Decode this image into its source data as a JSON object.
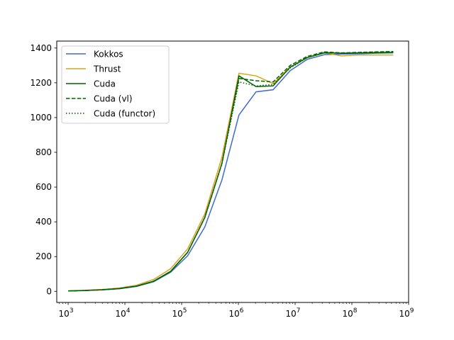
{
  "chart_data": {
    "type": "line",
    "xscale": "log",
    "xlim": [
      630,
      1000000000
    ],
    "ylim": [
      -64,
      1440
    ],
    "grid": false,
    "legend_position": "top-left",
    "x_ticks": [
      {
        "value": 1000,
        "base": "10",
        "exp": "3"
      },
      {
        "value": 10000,
        "base": "10",
        "exp": "4"
      },
      {
        "value": 100000,
        "base": "10",
        "exp": "5"
      },
      {
        "value": 1000000,
        "base": "10",
        "exp": "6"
      },
      {
        "value": 10000000,
        "base": "10",
        "exp": "7"
      },
      {
        "value": 100000000,
        "base": "10",
        "exp": "8"
      },
      {
        "value": 1000000000,
        "base": "10",
        "exp": "9"
      }
    ],
    "y_ticks": [
      0,
      200,
      400,
      600,
      800,
      1000,
      1200,
      1400
    ],
    "series": [
      {
        "name": "Kokkos",
        "color": "#4169cf",
        "dash": "solid",
        "x": [
          1000,
          2000,
          4000,
          8000,
          16000,
          32000,
          64000,
          128000,
          256000,
          512000,
          1024000,
          2048000,
          4096000,
          8192000,
          16384000,
          32768000,
          65536000,
          131072000,
          262144000,
          536870912
        ],
        "y": [
          2,
          5,
          9,
          15,
          28,
          55,
          110,
          205,
          370,
          640,
          1015,
          1148,
          1160,
          1270,
          1335,
          1362,
          1365,
          1367,
          1370,
          1372
        ]
      },
      {
        "name": "Thrust",
        "color": "#d9a41e",
        "dash": "solid",
        "x": [
          1000,
          2000,
          4000,
          8000,
          16000,
          32000,
          64000,
          128000,
          256000,
          512000,
          1024000,
          2048000,
          4096000,
          8192000,
          16384000,
          32768000,
          65536000,
          131072000,
          262144000,
          536870912
        ],
        "y": [
          3,
          6,
          11,
          19,
          35,
          68,
          130,
          245,
          445,
          770,
          1255,
          1240,
          1195,
          1290,
          1345,
          1372,
          1355,
          1360,
          1360,
          1360
        ]
      },
      {
        "name": "Cuda",
        "color": "#006400",
        "dash": "solid",
        "x": [
          1000,
          2000,
          4000,
          8000,
          16000,
          32000,
          64000,
          128000,
          256000,
          512000,
          1024000,
          2048000,
          4096000,
          8192000,
          16384000,
          32768000,
          65536000,
          131072000,
          262144000,
          536870912
        ],
        "y": [
          2,
          5,
          9,
          16,
          30,
          58,
          115,
          225,
          425,
          735,
          1240,
          1178,
          1182,
          1290,
          1345,
          1372,
          1370,
          1372,
          1374,
          1375
        ]
      },
      {
        "name": "Cuda (vl)",
        "color": "#006400",
        "dash": "dashed",
        "x": [
          1000,
          2000,
          4000,
          8000,
          16000,
          32000,
          64000,
          128000,
          256000,
          512000,
          1024000,
          2048000,
          4096000,
          8192000,
          16384000,
          32768000,
          65536000,
          131072000,
          262144000,
          536870912
        ],
        "y": [
          2,
          5,
          9,
          16,
          30,
          58,
          115,
          225,
          425,
          735,
          1225,
          1212,
          1205,
          1300,
          1352,
          1378,
          1372,
          1375,
          1378,
          1380
        ]
      },
      {
        "name": "Cuda (functor)",
        "color": "#006400",
        "dash": "dotted",
        "x": [
          1000,
          2000,
          4000,
          8000,
          16000,
          32000,
          64000,
          128000,
          256000,
          512000,
          1024000,
          2048000,
          4096000,
          8192000,
          16384000,
          32768000,
          65536000,
          131072000,
          262144000,
          536870912
        ],
        "y": [
          2,
          5,
          9,
          16,
          30,
          58,
          115,
          225,
          425,
          735,
          1205,
          1182,
          1190,
          1285,
          1345,
          1375,
          1370,
          1372,
          1376,
          1378
        ]
      }
    ]
  }
}
